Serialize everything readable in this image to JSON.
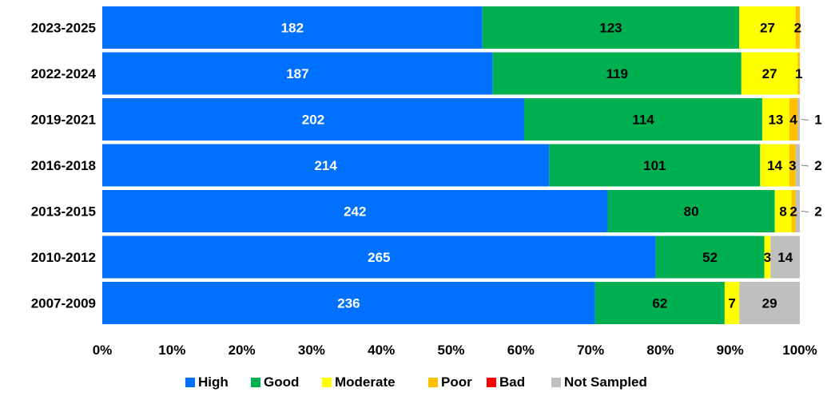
{
  "chart_data": {
    "type": "bar",
    "orientation": "horizontal",
    "stacked": "percent",
    "categories": [
      "2023-2025",
      "2022-2024",
      "2019-2021",
      "2016-2018",
      "2013-2015",
      "2010-2012",
      "2007-2009"
    ],
    "series": [
      {
        "name": "High",
        "color": "#0070FF",
        "values": [
          182,
          187,
          202,
          214,
          242,
          265,
          236
        ],
        "label_color": "#ffffff"
      },
      {
        "name": "Good",
        "color": "#00B050",
        "values": [
          123,
          119,
          114,
          101,
          80,
          52,
          62
        ],
        "label_color": "#000000"
      },
      {
        "name": "Moderate",
        "color": "#FFFF00",
        "values": [
          27,
          27,
          13,
          14,
          8,
          3,
          7
        ],
        "label_color": "#000000"
      },
      {
        "name": "Poor",
        "color": "#FFC000",
        "values": [
          2,
          1,
          4,
          3,
          2,
          0,
          0
        ],
        "label_color": "#000000"
      },
      {
        "name": "Bad",
        "color": "#FF0000",
        "values": [
          0,
          0,
          0,
          0,
          0,
          0,
          0
        ],
        "label_color": "#000000"
      },
      {
        "name": "Not Sampled",
        "color": "#BFBFBF",
        "values": [
          0,
          0,
          1,
          2,
          2,
          14,
          29
        ],
        "label_color": "#000000"
      }
    ],
    "x_ticks": [
      "0%",
      "10%",
      "20%",
      "30%",
      "40%",
      "50%",
      "60%",
      "70%",
      "80%",
      "90%",
      "100%"
    ],
    "xlim": [
      0,
      100
    ],
    "grid": false,
    "legend_position": "bottom"
  }
}
